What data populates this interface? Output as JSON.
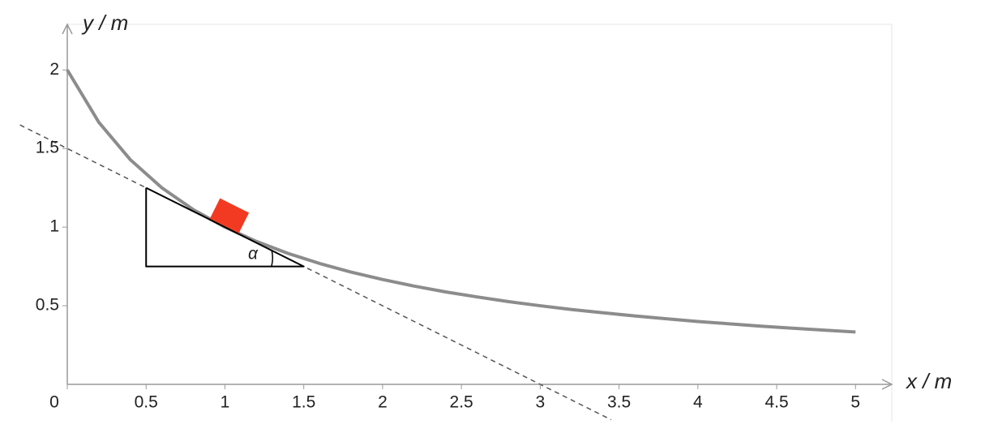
{
  "chart_data": {
    "type": "line",
    "x_label": "x / m",
    "y_label": "y / m",
    "annotation": "α",
    "xlim": [
      0,
      5.23
    ],
    "ylim": [
      0,
      2.29
    ],
    "xticks": [
      0,
      0.5,
      1,
      1.5,
      2,
      2.5,
      3,
      3.5,
      4,
      4.5,
      5
    ],
    "yticks": [
      0.5,
      1,
      1.5,
      2
    ],
    "series": [
      {
        "color": "#8c8c8c",
        "style": "solid",
        "x": [
          0,
          0.2,
          0.4,
          0.6,
          0.8,
          1,
          1.2,
          1.4,
          1.6,
          1.8,
          2,
          2.2,
          2.4,
          2.6,
          2.8,
          3,
          3.2,
          3.4,
          3.6,
          3.8,
          4,
          4.2,
          4.4,
          4.6,
          4.8,
          5
        ],
        "values": [
          2,
          1.667,
          1.429,
          1.25,
          1.111,
          1,
          0.909,
          0.833,
          0.769,
          0.714,
          0.667,
          0.625,
          0.588,
          0.556,
          0.526,
          0.5,
          0.476,
          0.455,
          0.435,
          0.417,
          0.4,
          0.385,
          0.37,
          0.357,
          0.345,
          0.333
        ]
      },
      {
        "color": "#555555",
        "style": "dashed",
        "x": [
          -0.3,
          3.45
        ],
        "values": [
          1.65,
          -0.225
        ]
      },
      {
        "color": "#000000",
        "style": "thin",
        "x": [
          0.5,
          0.5,
          1.5,
          0.5
        ],
        "values": [
          1.25,
          0.75,
          0.75,
          1.25
        ]
      }
    ]
  }
}
